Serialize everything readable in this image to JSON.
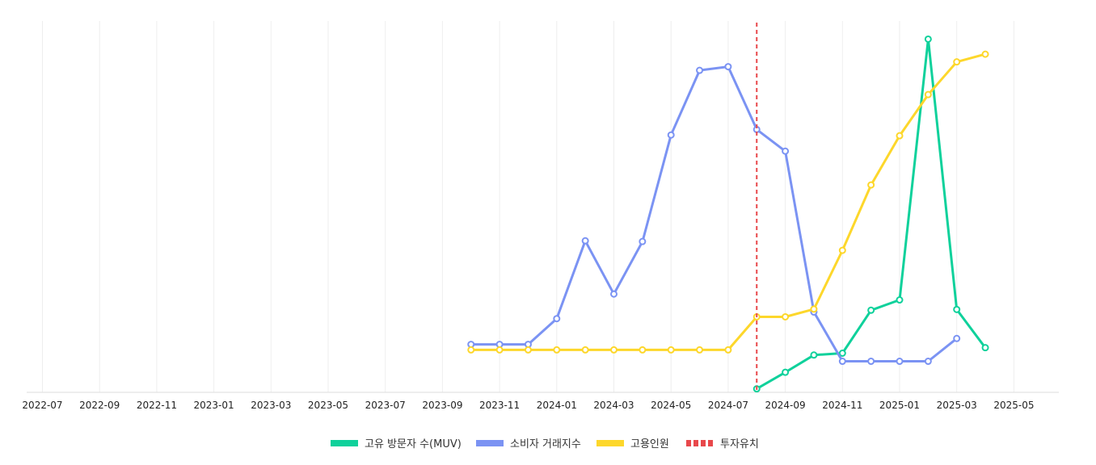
{
  "chart_data": {
    "type": "line",
    "title": "",
    "xlabel": "",
    "ylabel": "",
    "x_ticks": [
      "2022-07",
      "2022-09",
      "2022-11",
      "2023-01",
      "2023-03",
      "2023-05",
      "2023-07",
      "2023-09",
      "2023-11",
      "2024-01",
      "2024-03",
      "2024-05",
      "2024-07",
      "2024-09",
      "2024-11",
      "2025-01",
      "2025-03",
      "2025-05"
    ],
    "x_range": [
      "2022-06",
      "2025-06"
    ],
    "y_range": [
      0,
      100
    ],
    "y_axis_visible": false,
    "grid": "vertical",
    "legend_position": "bottom-center",
    "series": [
      {
        "name": "고유 방문자 수(MUV)",
        "color": "#0fd19b",
        "x": [
          "2024-08",
          "2024-09",
          "2024-10",
          "2024-11",
          "2024-12",
          "2025-01",
          "2025-02",
          "2025-03",
          "2025-04"
        ],
        "values": [
          0.3,
          4.8,
          9.5,
          10,
          21.7,
          24.5,
          95.5,
          21.9,
          11.5
        ]
      },
      {
        "name": "소비자 거래지수",
        "color": "#7b93f3",
        "x": [
          "2023-10",
          "2023-11",
          "2023-12",
          "2024-01",
          "2024-02",
          "2024-03",
          "2024-04",
          "2024-05",
          "2024-06",
          "2024-07",
          "2024-08",
          "2024-09",
          "2024-10",
          "2024-11",
          "2024-12",
          "2025-01",
          "2025-02",
          "2025-03"
        ],
        "values": [
          12.4,
          12.4,
          12.4,
          19.4,
          40.6,
          26.1,
          40.4,
          69.4,
          87.0,
          88.0,
          70.9,
          65.0,
          21.2,
          7.8,
          7.8,
          7.8,
          7.8,
          14.0
        ]
      },
      {
        "name": "고용인원",
        "color": "#fdd72b",
        "x": [
          "2023-10",
          "2023-11",
          "2023-12",
          "2024-01",
          "2024-02",
          "2024-03",
          "2024-04",
          "2024-05",
          "2024-06",
          "2024-07",
          "2024-08",
          "2024-09",
          "2024-10",
          "2024-11",
          "2024-12",
          "2025-01",
          "2025-02",
          "2025-03",
          "2025-04"
        ],
        "values": [
          10.9,
          10.9,
          10.9,
          10.9,
          10.9,
          10.9,
          10.9,
          10.9,
          10.9,
          10.9,
          19.9,
          19.9,
          22.0,
          38.0,
          55.8,
          69.2,
          80.4,
          89.3,
          91.4
        ]
      }
    ],
    "annotations": [
      {
        "name": "투자유치",
        "type": "vertical-dashed-line",
        "x": "2024-08",
        "color": "#e8484b"
      }
    ]
  }
}
